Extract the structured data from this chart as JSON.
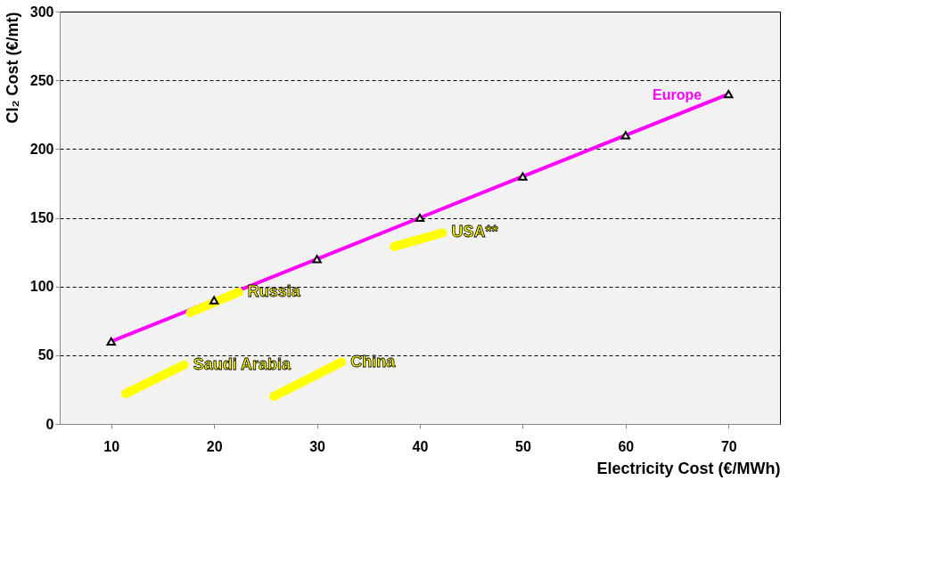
{
  "chart_data": {
    "type": "line",
    "xlabel": "Electricity Cost (€/MWh)",
    "ylabel": "Cl₂ Cost (€/mt)",
    "xlim": [
      5,
      75
    ],
    "xticks": [
      10,
      20,
      30,
      40,
      50,
      60,
      70
    ],
    "ylim": [
      0,
      300
    ],
    "yticks": [
      0,
      50,
      100,
      150,
      200,
      250,
      300
    ],
    "grid": "y",
    "legend": false,
    "series": [
      {
        "name": "Europe",
        "color": "#ff00ff",
        "marker": "triangle",
        "x": [
          10,
          20,
          30,
          40,
          50,
          60,
          70
        ],
        "values": [
          60,
          90,
          120,
          150,
          180,
          210,
          240
        ]
      },
      {
        "name": "Saudi Arabia",
        "color": "#ffff00",
        "marker": "none",
        "x": [
          11.4,
          17.1
        ],
        "values": [
          22,
          43
        ]
      },
      {
        "name": "Russia",
        "color": "#ffff00",
        "marker": "none",
        "x": [
          17.7,
          22.4
        ],
        "values": [
          81,
          96
        ]
      },
      {
        "name": "China",
        "color": "#ffff00",
        "marker": "none",
        "x": [
          25.8,
          32.4
        ],
        "values": [
          20,
          45
        ]
      },
      {
        "name": "USA**",
        "color": "#ffff00",
        "marker": "none",
        "x": [
          37.5,
          42.2
        ],
        "values": [
          129,
          139
        ]
      }
    ]
  }
}
